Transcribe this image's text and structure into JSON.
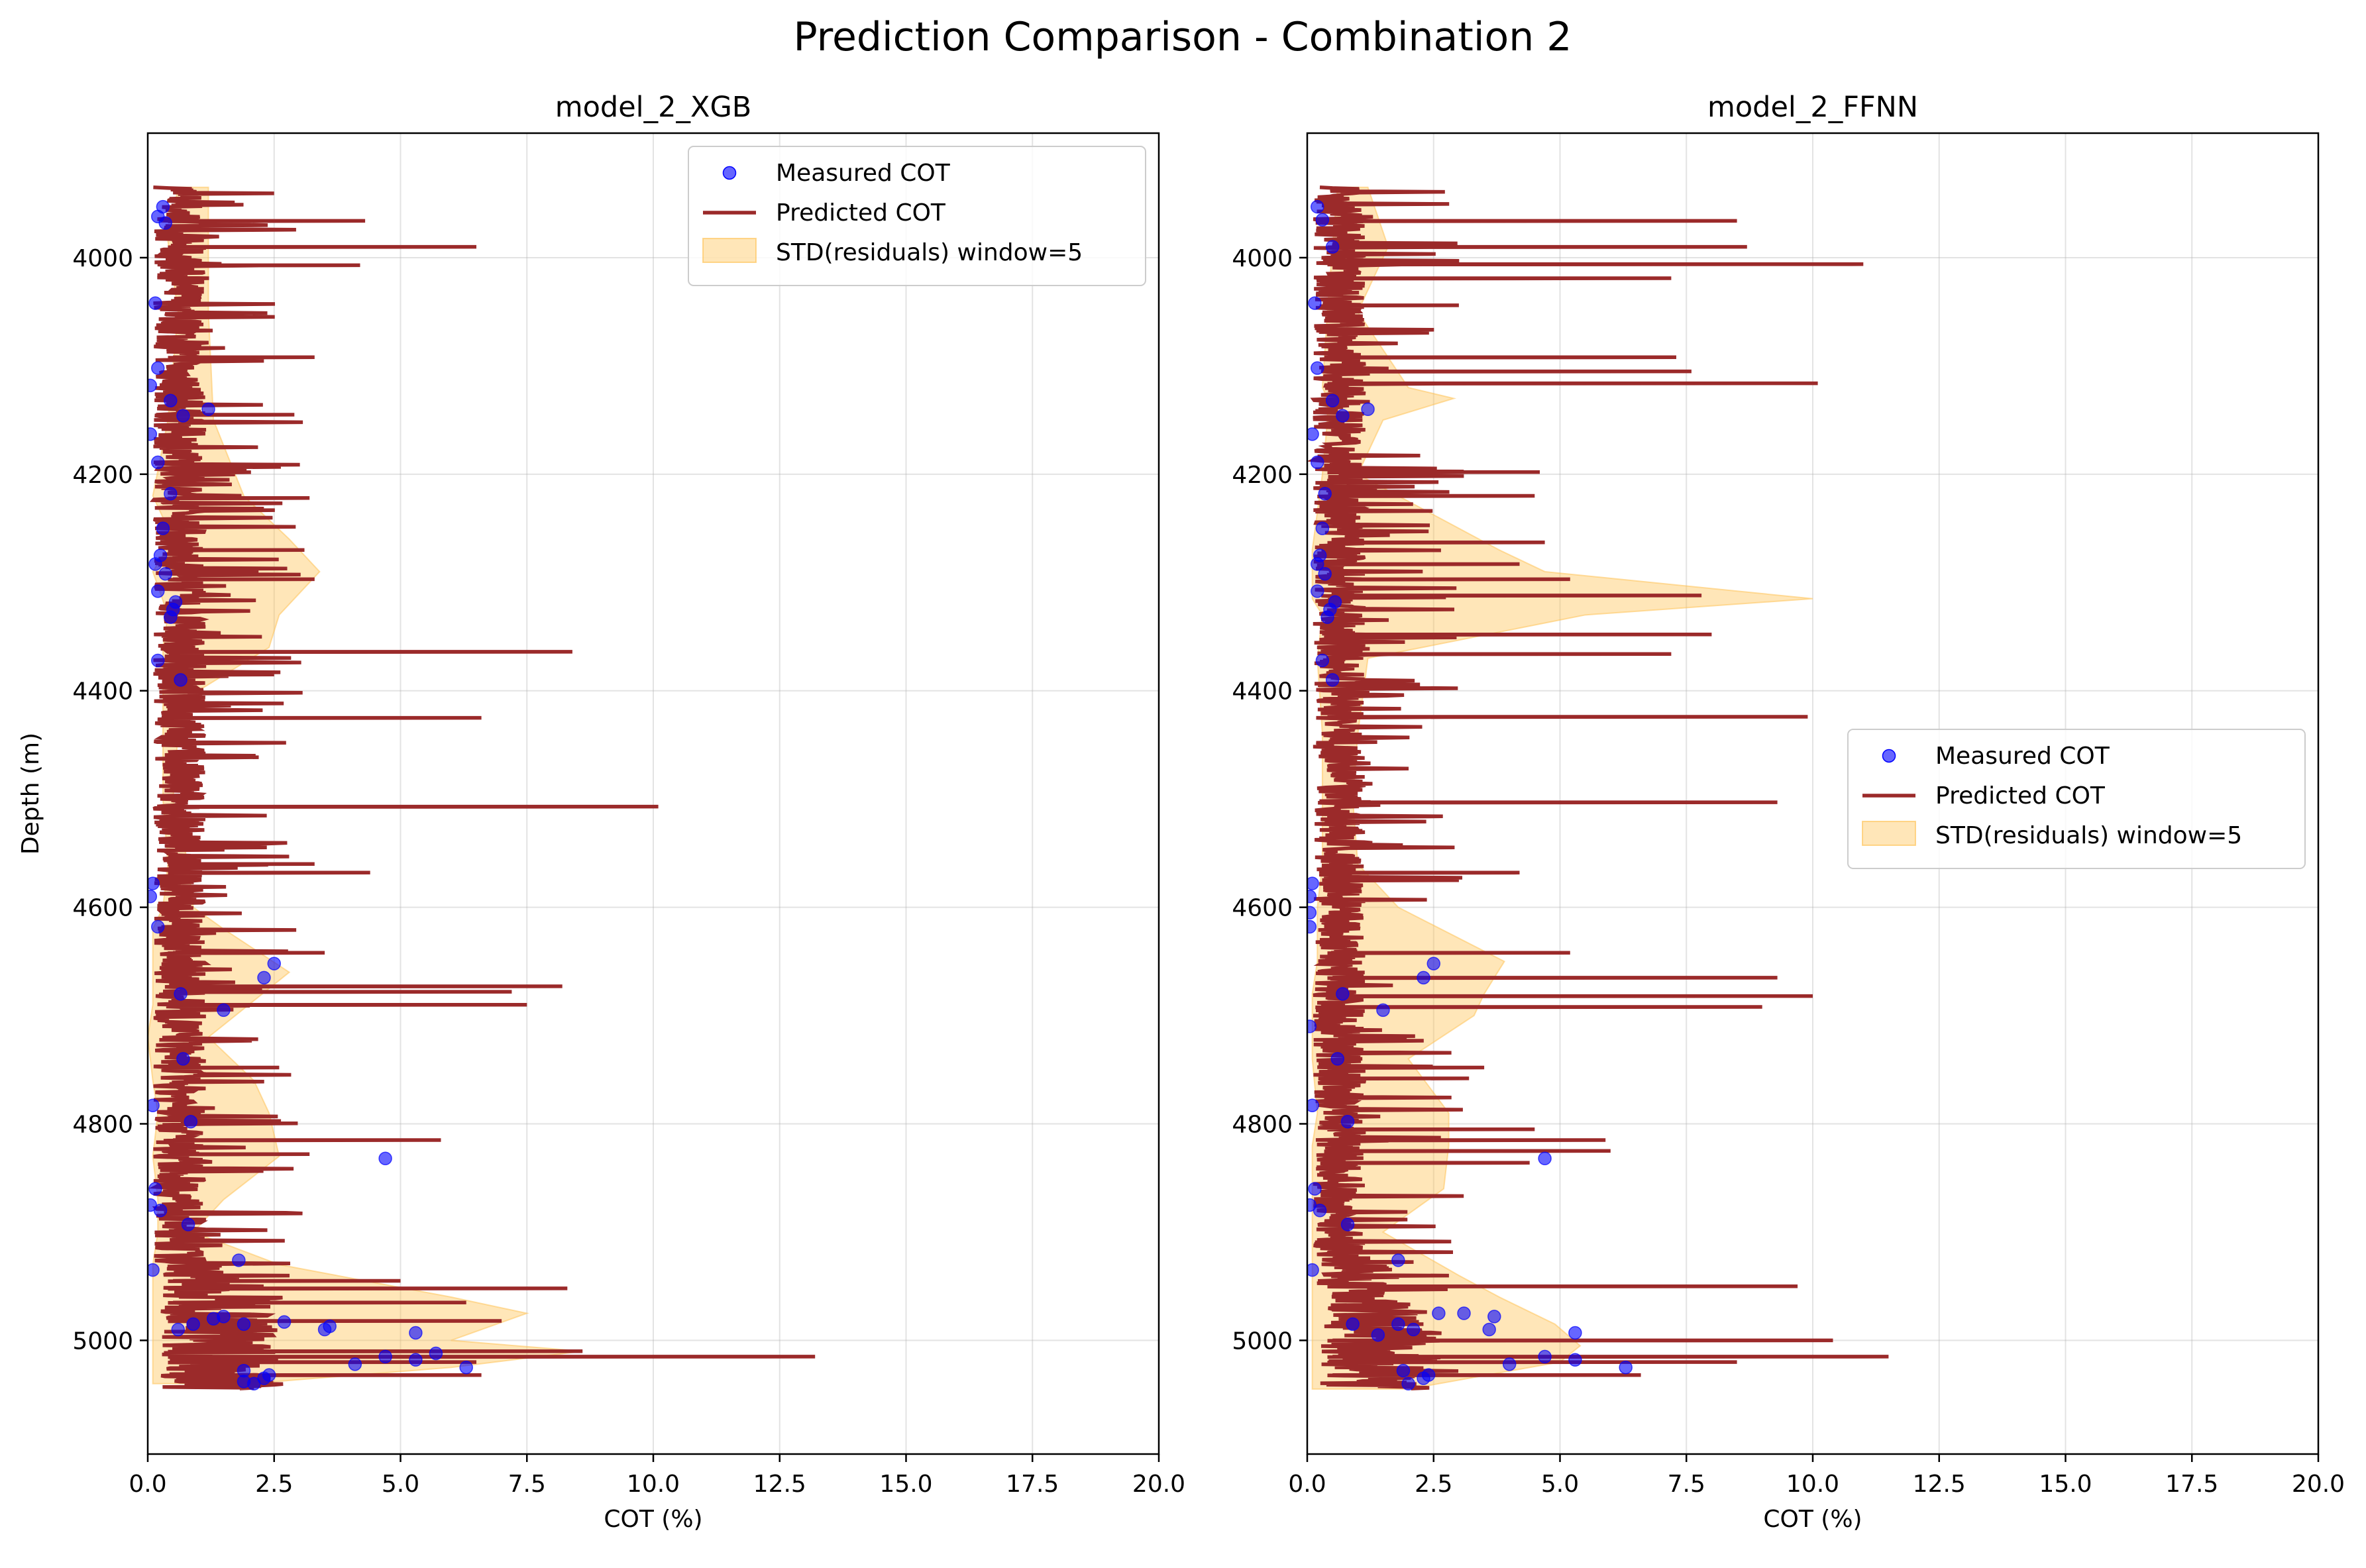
{
  "figure": {
    "title": "Prediction Comparison - Combination 2"
  },
  "chart_data": [
    {
      "type": "line",
      "title": "model_2_XGB",
      "xlabel": "COT (%)",
      "ylabel": "Depth (m)",
      "xlim": [
        0,
        20
      ],
      "ylim": [
        5105,
        3885
      ],
      "x_ticks": [
        "0.0",
        "2.5",
        "5.0",
        "7.5",
        "10.0",
        "12.5",
        "15.0",
        "17.5",
        "20.0"
      ],
      "y_ticks": [
        "4000",
        "4200",
        "4400",
        "4600",
        "4800",
        "5000"
      ],
      "grid": true,
      "legend_position": "top-right",
      "series": [
        {
          "name": "Measured COT",
          "kind": "scatter",
          "color": "#0000ff",
          "points": [
            [
              0.3,
              3953
            ],
            [
              0.2,
              3962
            ],
            [
              0.35,
              3968
            ],
            [
              0.15,
              4042
            ],
            [
              0.2,
              4102
            ],
            [
              0.05,
              4118
            ],
            [
              0.45,
              4132
            ],
            [
              0.7,
              4146
            ],
            [
              1.2,
              4140
            ],
            [
              0.05,
              4163
            ],
            [
              0.2,
              4189
            ],
            [
              0.45,
              4218
            ],
            [
              0.3,
              4250
            ],
            [
              0.25,
              4275
            ],
            [
              0.15,
              4283
            ],
            [
              0.35,
              4292
            ],
            [
              0.2,
              4308
            ],
            [
              0.55,
              4318
            ],
            [
              0.5,
              4325
            ],
            [
              0.45,
              4332
            ],
            [
              0.2,
              4372
            ],
            [
              0.65,
              4390
            ],
            [
              0.1,
              4578
            ],
            [
              0.05,
              4590
            ],
            [
              0.2,
              4618
            ],
            [
              2.5,
              4652
            ],
            [
              2.3,
              4665
            ],
            [
              0.65,
              4680
            ],
            [
              1.5,
              4695
            ],
            [
              0.7,
              4740
            ],
            [
              0.1,
              4783
            ],
            [
              0.85,
              4798
            ],
            [
              4.7,
              4832
            ],
            [
              0.15,
              4860
            ],
            [
              0.05,
              4875
            ],
            [
              0.25,
              4880
            ],
            [
              0.8,
              4893
            ],
            [
              1.8,
              4926
            ],
            [
              0.1,
              4935
            ],
            [
              1.3,
              4980
            ],
            [
              3.6,
              4987
            ],
            [
              3.5,
              4990
            ],
            [
              5.3,
              4993
            ],
            [
              0.9,
              4985
            ],
            [
              2.7,
              4983
            ],
            [
              1.5,
              4978
            ],
            [
              1.9,
              4985
            ],
            [
              0.6,
              4990
            ],
            [
              5.7,
              5012
            ],
            [
              4.7,
              5015
            ],
            [
              5.3,
              5018
            ],
            [
              4.1,
              5022
            ],
            [
              6.3,
              5025
            ],
            [
              1.9,
              5028
            ],
            [
              2.4,
              5032
            ],
            [
              2.3,
              5035
            ],
            [
              2.1,
              5040
            ],
            [
              1.9,
              5038
            ]
          ]
        },
        {
          "name": "Predicted COT",
          "kind": "line",
          "color": "#9b2a2a",
          "spikes": [
            [
              4.3,
              3966
            ],
            [
              6.5,
              3990
            ],
            [
              4.2,
              4007
            ],
            [
              3.3,
              4092
            ],
            [
              2.9,
              4145
            ],
            [
              3.2,
              4222
            ],
            [
              3.1,
              4270
            ],
            [
              3.3,
              4297
            ],
            [
              8.4,
              4364
            ],
            [
              2.5,
              4385
            ],
            [
              6.6,
              4425
            ],
            [
              10.1,
              4507
            ],
            [
              3.3,
              4560
            ],
            [
              4.4,
              4568
            ],
            [
              3.5,
              4642
            ],
            [
              8.2,
              4673
            ],
            [
              7.2,
              4678
            ],
            [
              7.5,
              4690
            ],
            [
              2.6,
              4748
            ],
            [
              5.8,
              4815
            ],
            [
              3.2,
              4828
            ],
            [
              5.0,
              4945
            ],
            [
              8.3,
              4952
            ],
            [
              6.3,
              4965
            ],
            [
              7.0,
              4982
            ],
            [
              8.6,
              5010
            ],
            [
              13.2,
              5015
            ],
            [
              6.5,
              5020
            ],
            [
              6.6,
              5032
            ]
          ]
        },
        {
          "name": "STD(residuals) window=5",
          "kind": "band",
          "color": "#ffc04d",
          "band": [
            [
              3935,
              0.6,
              1.2
            ],
            [
              3985,
              0.4,
              1.2
            ],
            [
              4050,
              0.6,
              1.2
            ],
            [
              4150,
              0.4,
              1.3
            ],
            [
              4220,
              0.1,
              1.9
            ],
            [
              4260,
              0.5,
              2.8
            ],
            [
              4290,
              0.1,
              3.4
            ],
            [
              4330,
              0.4,
              2.6
            ],
            [
              4360,
              0.3,
              2.4
            ],
            [
              4400,
              0.3,
              1.0
            ],
            [
              4440,
              0.3,
              0.6
            ],
            [
              4500,
              0.3,
              0.5
            ],
            [
              4560,
              0.4,
              0.8
            ],
            [
              4600,
              0.3,
              0.9
            ],
            [
              4620,
              0.1,
              1.5
            ],
            [
              4660,
              0.1,
              2.8
            ],
            [
              4690,
              0.1,
              2.0
            ],
            [
              4720,
              0.0,
              1.2
            ],
            [
              4760,
              0.1,
              2.1
            ],
            [
              4790,
              0.2,
              2.4
            ],
            [
              4830,
              0.1,
              2.6
            ],
            [
              4870,
              0.2,
              1.5
            ],
            [
              4900,
              0.2,
              0.9
            ],
            [
              4930,
              0.1,
              2.6
            ],
            [
              4960,
              0.1,
              6.0
            ],
            [
              4975,
              0.1,
              7.5
            ],
            [
              5000,
              0.1,
              6.0
            ],
            [
              5010,
              0.1,
              8.6
            ],
            [
              5025,
              0.1,
              6.0
            ],
            [
              5040,
              0.1,
              2.0
            ]
          ]
        }
      ]
    },
    {
      "type": "line",
      "title": "model_2_FFNN",
      "xlabel": "COT (%)",
      "ylabel": "",
      "xlim": [
        0,
        20
      ],
      "ylim": [
        5105,
        3885
      ],
      "x_ticks": [
        "0.0",
        "2.5",
        "5.0",
        "7.5",
        "10.0",
        "12.5",
        "15.0",
        "17.5",
        "20.0"
      ],
      "y_ticks": [
        "4000",
        "4200",
        "4400",
        "4600",
        "4800",
        "5000"
      ],
      "grid": true,
      "legend_position": "center-right",
      "series": [
        {
          "name": "Measured COT",
          "kind": "scatter",
          "color": "#0000ff",
          "points": [
            [
              0.2,
              3953
            ],
            [
              0.3,
              3965
            ],
            [
              0.5,
              3990
            ],
            [
              0.15,
              4042
            ],
            [
              0.2,
              4102
            ],
            [
              0.5,
              4132
            ],
            [
              0.7,
              4146
            ],
            [
              1.2,
              4140
            ],
            [
              0.1,
              4163
            ],
            [
              0.2,
              4189
            ],
            [
              0.35,
              4218
            ],
            [
              0.3,
              4250
            ],
            [
              0.25,
              4275
            ],
            [
              0.2,
              4283
            ],
            [
              0.35,
              4292
            ],
            [
              0.2,
              4308
            ],
            [
              0.55,
              4318
            ],
            [
              0.45,
              4325
            ],
            [
              0.4,
              4332
            ],
            [
              0.3,
              4372
            ],
            [
              0.5,
              4390
            ],
            [
              0.1,
              4578
            ],
            [
              0.05,
              4590
            ],
            [
              0.05,
              4605
            ],
            [
              0.05,
              4618
            ],
            [
              2.5,
              4652
            ],
            [
              2.3,
              4665
            ],
            [
              0.7,
              4680
            ],
            [
              1.5,
              4695
            ],
            [
              0.05,
              4710
            ],
            [
              0.6,
              4740
            ],
            [
              0.1,
              4783
            ],
            [
              0.8,
              4798
            ],
            [
              4.7,
              4832
            ],
            [
              0.15,
              4860
            ],
            [
              0.05,
              4875
            ],
            [
              0.25,
              4880
            ],
            [
              0.8,
              4893
            ],
            [
              1.8,
              4926
            ],
            [
              0.1,
              4935
            ],
            [
              2.6,
              4975
            ],
            [
              3.1,
              4975
            ],
            [
              3.7,
              4978
            ],
            [
              1.8,
              4985
            ],
            [
              3.6,
              4990
            ],
            [
              5.3,
              4993
            ],
            [
              0.9,
              4985
            ],
            [
              2.1,
              4990
            ],
            [
              1.4,
              4995
            ],
            [
              4.7,
              5015
            ],
            [
              5.3,
              5018
            ],
            [
              4.0,
              5022
            ],
            [
              6.3,
              5025
            ],
            [
              1.9,
              5028
            ],
            [
              2.4,
              5032
            ],
            [
              2.3,
              5035
            ],
            [
              2.0,
              5040
            ]
          ]
        },
        {
          "name": "Predicted COT",
          "kind": "line",
          "color": "#9b2a2a",
          "spikes": [
            [
              8.5,
              3966
            ],
            [
              8.7,
              3990
            ],
            [
              11.0,
              4006
            ],
            [
              7.2,
              4019
            ],
            [
              3.0,
              4044
            ],
            [
              7.3,
              4092
            ],
            [
              7.6,
              4105
            ],
            [
              10.1,
              4116
            ],
            [
              4.6,
              4198
            ],
            [
              4.5,
              4220
            ],
            [
              4.7,
              4263
            ],
            [
              4.2,
              4283
            ],
            [
              5.2,
              4297
            ],
            [
              7.8,
              4312
            ],
            [
              8.0,
              4348
            ],
            [
              7.2,
              4366
            ],
            [
              9.9,
              4424
            ],
            [
              9.3,
              4503
            ],
            [
              4.2,
              4568
            ],
            [
              3.0,
              4575
            ],
            [
              5.2,
              4642
            ],
            [
              9.3,
              4665
            ],
            [
              10.0,
              4682
            ],
            [
              9.0,
              4692
            ],
            [
              3.5,
              4748
            ],
            [
              3.2,
              4758
            ],
            [
              4.5,
              4805
            ],
            [
              5.9,
              4815
            ],
            [
              6.0,
              4825
            ],
            [
              4.4,
              4836
            ],
            [
              9.7,
              4950
            ],
            [
              10.4,
              5000
            ],
            [
              11.5,
              5015
            ],
            [
              8.5,
              5020
            ],
            [
              6.6,
              5032
            ]
          ]
        },
        {
          "name": "STD(residuals) window=5",
          "kind": "band",
          "color": "#ffc04d",
          "band": [
            [
              3935,
              0.6,
              1.2
            ],
            [
              3990,
              0.5,
              1.6
            ],
            [
              4050,
              0.4,
              1.0
            ],
            [
              4120,
              0.3,
              2.0
            ],
            [
              4130,
              0.4,
              2.9
            ],
            [
              4150,
              0.4,
              1.5
            ],
            [
              4200,
              0.3,
              1.0
            ],
            [
              4270,
              0.1,
              3.8
            ],
            [
              4290,
              0.1,
              4.7
            ],
            [
              4315,
              0.1,
              10.0
            ],
            [
              4330,
              0.3,
              5.5
            ],
            [
              4370,
              0.2,
              1.2
            ],
            [
              4440,
              0.3,
              1.0
            ],
            [
              4500,
              0.3,
              0.9
            ],
            [
              4560,
              0.3,
              1.0
            ],
            [
              4600,
              0.2,
              1.8
            ],
            [
              4650,
              0.2,
              3.9
            ],
            [
              4680,
              0.1,
              3.5
            ],
            [
              4700,
              0.1,
              3.3
            ],
            [
              4740,
              0.1,
              2.0
            ],
            [
              4790,
              0.2,
              2.8
            ],
            [
              4820,
              0.1,
              2.8
            ],
            [
              4860,
              0.1,
              2.7
            ],
            [
              4900,
              0.1,
              1.5
            ],
            [
              4940,
              0.1,
              3.0
            ],
            [
              4960,
              0.1,
              3.8
            ],
            [
              4985,
              0.1,
              4.9
            ],
            [
              5005,
              0.1,
              5.4
            ],
            [
              5020,
              0.1,
              5.0
            ],
            [
              5045,
              0.1,
              2.0
            ]
          ]
        }
      ]
    }
  ]
}
